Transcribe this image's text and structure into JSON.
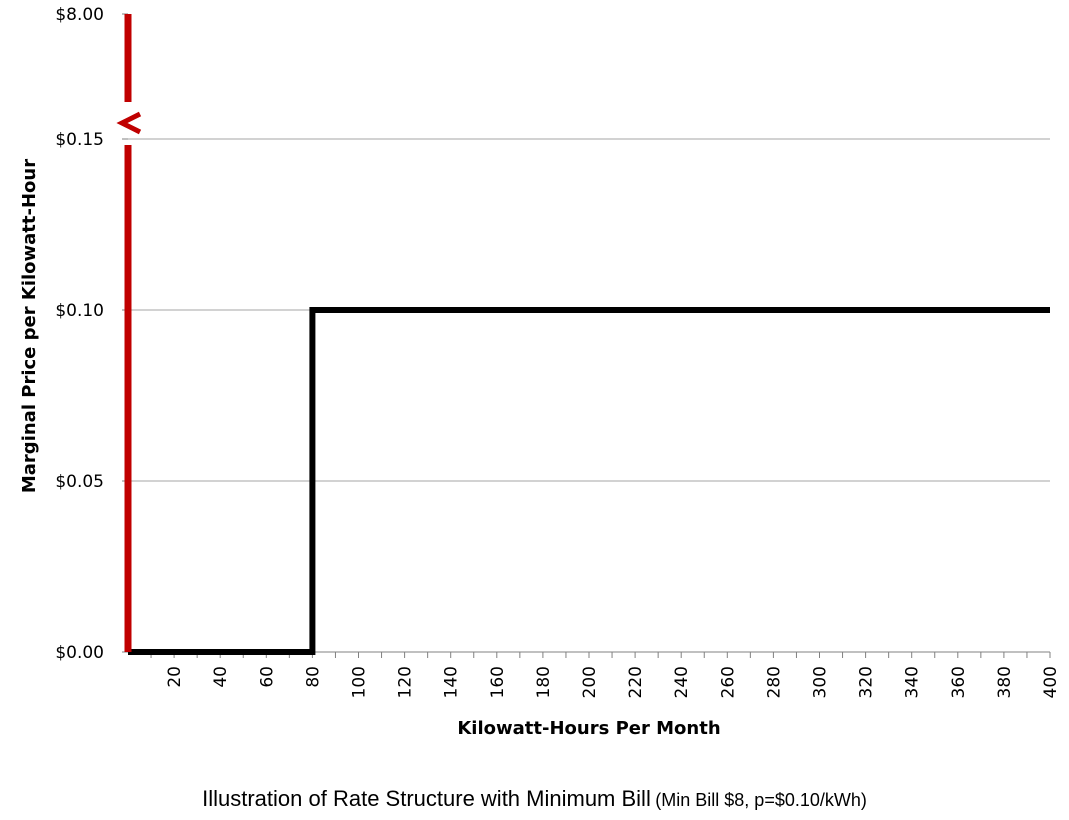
{
  "chart_data": {
    "type": "line",
    "title": "",
    "xlabel": "Kilowatt-Hours Per Month",
    "ylabel": "Marginal Price per Kilowatt-Hour",
    "x_ticks": [
      20,
      40,
      60,
      80,
      100,
      120,
      140,
      160,
      180,
      200,
      220,
      240,
      260,
      280,
      300,
      320,
      340,
      360,
      380,
      400
    ],
    "y_ticks": [
      {
        "value": 0.0,
        "label": "$0.00"
      },
      {
        "value": 0.05,
        "label": "$0.05"
      },
      {
        "value": 0.1,
        "label": "$0.10"
      },
      {
        "value": 0.15,
        "label": "$0.15"
      }
    ],
    "y_break_label": "$8.00",
    "xlim": [
      0,
      400
    ],
    "ylim": [
      0,
      0.15
    ],
    "grid": "horizontal",
    "series": [
      {
        "color": "#000000",
        "points": [
          {
            "x": 0,
            "y": 0.0
          },
          {
            "x": 80,
            "y": 0.0
          },
          {
            "x": 80,
            "y": 0.1
          },
          {
            "x": 400,
            "y": 0.1
          }
        ]
      }
    ],
    "minimum_bill_bar": {
      "x": 0,
      "value": 8.0,
      "color": "#c00000"
    }
  },
  "caption": {
    "main": "Illustration of Rate Structure with Minimum Bill",
    "sub": "(Min Bill $8, p=$0.10/kWh)"
  }
}
